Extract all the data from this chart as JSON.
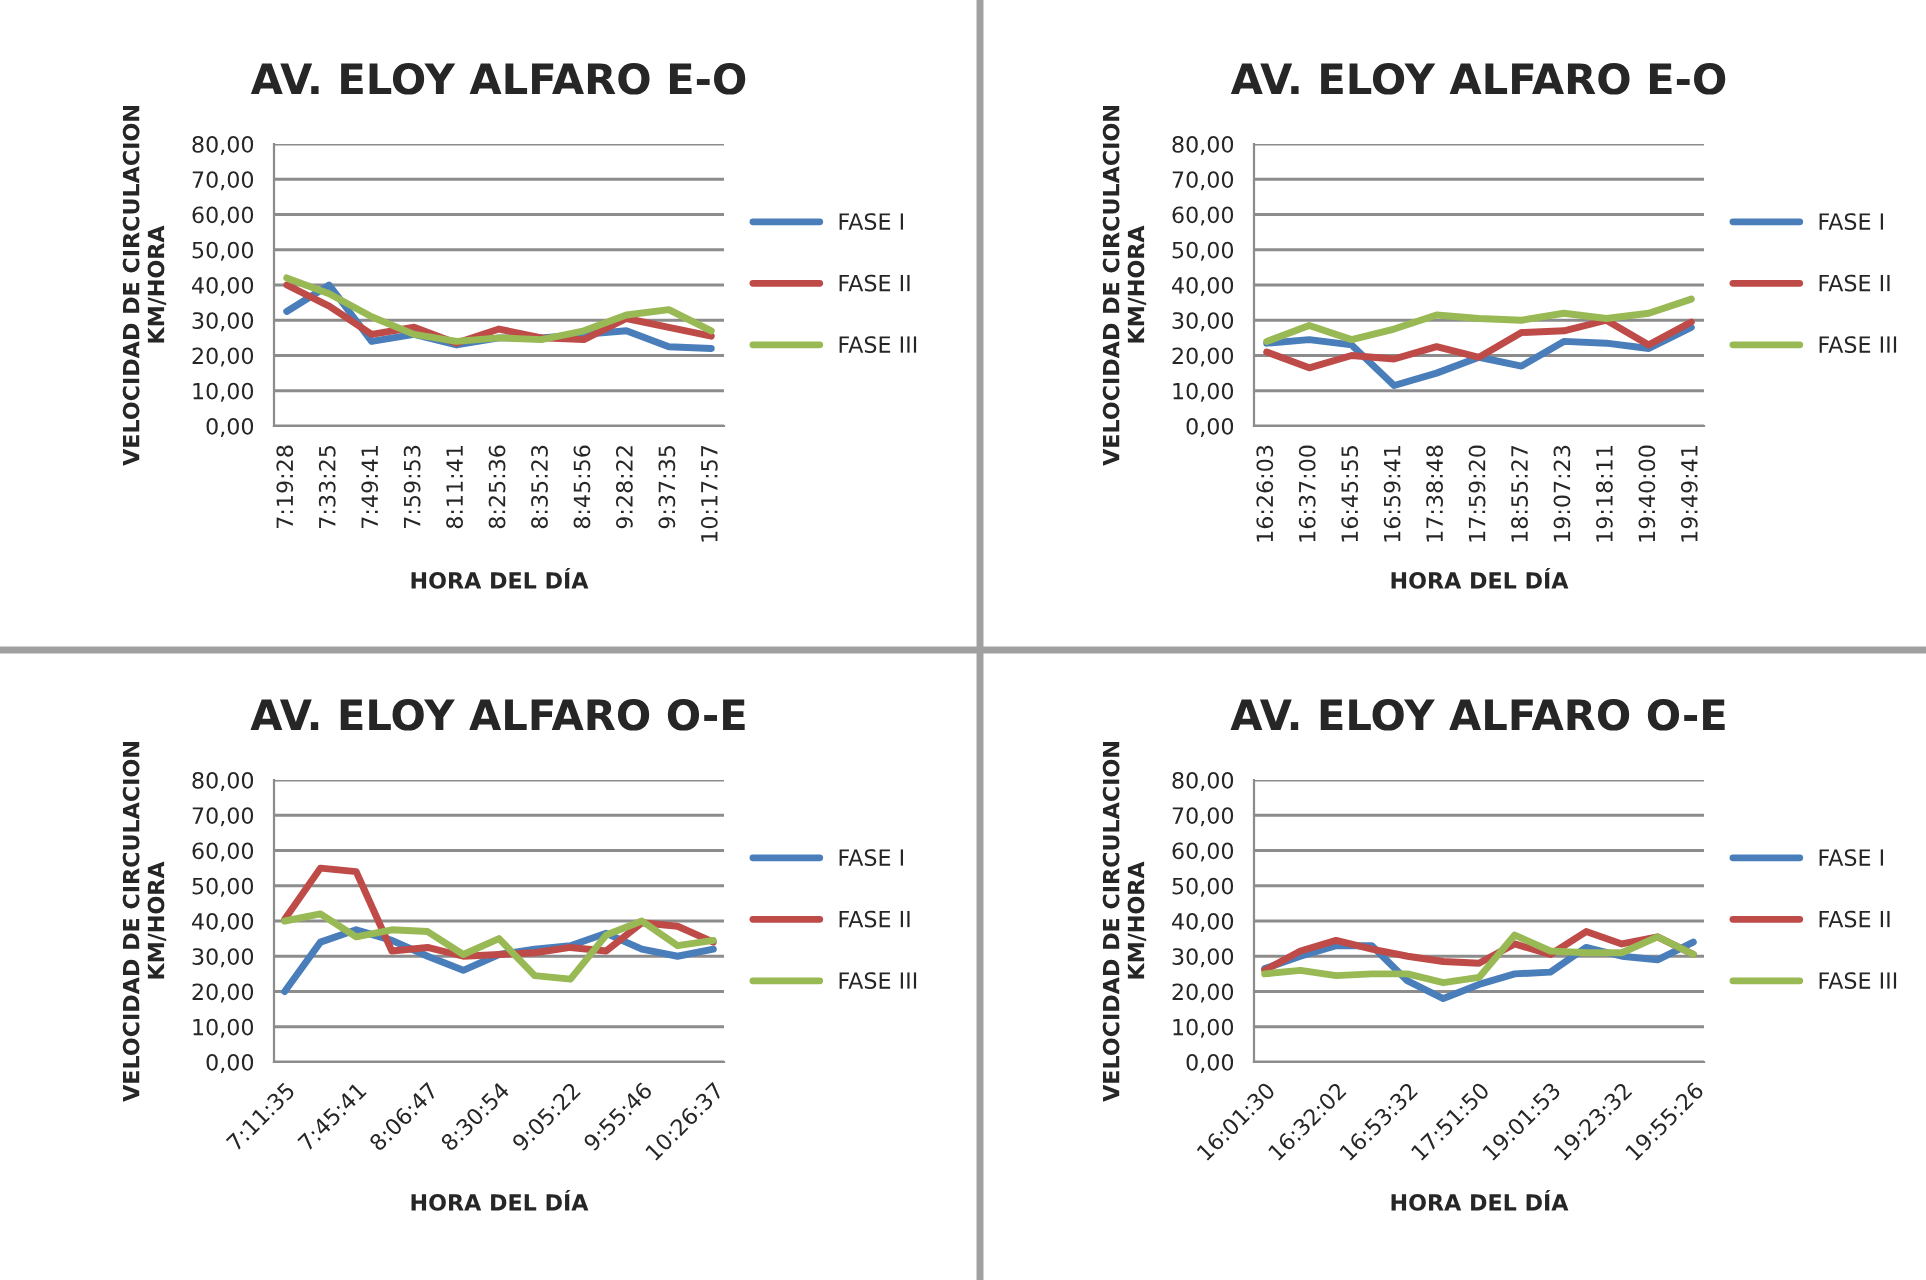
{
  "chart_data": [
    {
      "type": "line",
      "title": "AV. ELOY ALFARO E-O",
      "xlabel": "HORA DEL DÍA",
      "ylabel": "VELOCIDAD DE CIRCULACION\nKM/HORA",
      "categories": [
        "7:19:28",
        "7:33:25",
        "7:49:41",
        "7:59:53",
        "8:11:41",
        "8:25:36",
        "8:35:23",
        "8:45:56",
        "9:28:22",
        "9:37:35",
        "10:17:57"
      ],
      "series": [
        {
          "name": "FASE I",
          "color": "#4a7ebb",
          "values": [
            32.5,
            40,
            24,
            26,
            23,
            25,
            25,
            26,
            27,
            22.5,
            22
          ]
        },
        {
          "name": "FASE II",
          "color": "#be4b48",
          "values": [
            40,
            34,
            26,
            28,
            23.5,
            27.5,
            25,
            24.5,
            30.5,
            28,
            25.5
          ]
        },
        {
          "name": "FASE III",
          "color": "#98b954",
          "values": [
            42,
            37.5,
            31,
            26,
            24,
            25,
            24.5,
            27,
            31.5,
            33,
            27
          ]
        }
      ],
      "ylim": [
        0,
        80
      ],
      "yticks": [
        {
          "value": 0,
          "label": "0,00"
        },
        {
          "value": 10,
          "label": "10,00"
        },
        {
          "value": 20,
          "label": "20,00"
        },
        {
          "value": 30,
          "label": "30,00"
        },
        {
          "value": 40,
          "label": "40,00"
        },
        {
          "value": 50,
          "label": "50,00"
        },
        {
          "value": 60,
          "label": "60,00"
        },
        {
          "value": 70,
          "label": "70,00"
        },
        {
          "value": 80,
          "label": "80,00"
        }
      ],
      "grid": "y",
      "legend": "right"
    },
    {
      "type": "line",
      "title": "AV. ELOY ALFARO E-O",
      "xlabel": "HORA DEL DÍA",
      "ylabel": "VELOCIDAD DE CIRCULACION\nKM/HORA",
      "categories": [
        "16:26:03",
        "16:37:00",
        "16:45:55",
        "16:59:41",
        "17:38:48",
        "17:59:20",
        "18:55:27",
        "19:07:23",
        "19:18:11",
        "19:40:00",
        "19:49:41"
      ],
      "series": [
        {
          "name": "FASE I",
          "color": "#4a7ebb",
          "values": [
            23.5,
            24.5,
            23,
            11.5,
            15,
            19.5,
            17,
            24,
            23.5,
            22,
            28
          ]
        },
        {
          "name": "FASE II",
          "color": "#be4b48",
          "values": [
            21,
            16.5,
            20,
            19,
            22.5,
            19.5,
            26.5,
            27,
            30,
            23,
            29.5
          ]
        },
        {
          "name": "FASE III",
          "color": "#98b954",
          "values": [
            24,
            28.5,
            24.5,
            27.5,
            31.5,
            30.5,
            30,
            32,
            30.5,
            32,
            36
          ]
        }
      ],
      "ylim": [
        0,
        80
      ],
      "yticks": [
        {
          "value": 0,
          "label": "0,00"
        },
        {
          "value": 10,
          "label": "10,00"
        },
        {
          "value": 20,
          "label": "20,00"
        },
        {
          "value": 30,
          "label": "30,00"
        },
        {
          "value": 40,
          "label": "40,00"
        },
        {
          "value": 50,
          "label": "50,00"
        },
        {
          "value": 60,
          "label": "60,00"
        },
        {
          "value": 70,
          "label": "70,00"
        },
        {
          "value": 80,
          "label": "80,00"
        }
      ],
      "grid": "y",
      "legend": "right"
    },
    {
      "type": "line",
      "title": "AV. ELOY ALFARO O-E",
      "xlabel": "HORA DEL DÍA",
      "ylabel": "VELOCIDAD DE CIRCULACION\nKM/HORA",
      "categories": [
        "7:11:35",
        null,
        "7:45:41",
        null,
        "8:06:47",
        null,
        "8:30:54",
        null,
        "9:05:22",
        null,
        "9:55:46",
        null,
        "10:26:37"
      ],
      "series": [
        {
          "name": "FASE I",
          "color": "#4a7ebb",
          "values": [
            20,
            34,
            37.5,
            34.5,
            30,
            26,
            30.5,
            32,
            33,
            36.5,
            32,
            30,
            32
          ]
        },
        {
          "name": "FASE II",
          "color": "#be4b48",
          "values": [
            40.5,
            55,
            54,
            31.5,
            32.5,
            30,
            30.5,
            31,
            32.5,
            31.5,
            39.5,
            38.5,
            34
          ]
        },
        {
          "name": "FASE III",
          "color": "#98b954",
          "values": [
            40,
            42,
            35.5,
            37.5,
            37,
            30.5,
            35,
            24.5,
            23.5,
            36,
            40,
            33,
            34.5
          ]
        }
      ],
      "ylim": [
        0,
        80
      ],
      "yticks": [
        {
          "value": 0,
          "label": "0,00"
        },
        {
          "value": 10,
          "label": "10,00"
        },
        {
          "value": 20,
          "label": "20,00"
        },
        {
          "value": 30,
          "label": "30,00"
        },
        {
          "value": 40,
          "label": "40,00"
        },
        {
          "value": 50,
          "label": "50,00"
        },
        {
          "value": 60,
          "label": "60,00"
        },
        {
          "value": 70,
          "label": "70,00"
        },
        {
          "value": 80,
          "label": "80,00"
        }
      ],
      "grid": "y",
      "legend": "right"
    },
    {
      "type": "line",
      "title": "AV. ELOY ALFARO O-E",
      "xlabel": "HORA DEL DÍA",
      "ylabel": "VELOCIDAD DE CIRCULACION\nKM/HORA",
      "categories": [
        "16:01:30",
        null,
        "16:32:02",
        null,
        "16:53:32",
        null,
        "17:51:50",
        null,
        "19:01:53",
        null,
        "19:23:32",
        null,
        "19:55:26"
      ],
      "series": [
        {
          "name": "FASE I",
          "color": "#4a7ebb",
          "values": [
            26.5,
            30,
            33,
            33,
            23,
            18,
            22,
            25,
            25.5,
            32.5,
            30,
            29,
            34
          ]
        },
        {
          "name": "FASE II",
          "color": "#be4b48",
          "values": [
            26,
            31.5,
            34.5,
            32,
            30,
            28.5,
            28,
            33.5,
            30.5,
            37,
            33.5,
            35.5,
            30.5
          ]
        },
        {
          "name": "FASE III",
          "color": "#98b954",
          "values": [
            25,
            26,
            24.5,
            25,
            25,
            22.5,
            24,
            36,
            31.5,
            31,
            31,
            35.5,
            30.5
          ]
        }
      ],
      "ylim": [
        0,
        80
      ],
      "yticks": [
        {
          "value": 0,
          "label": "0,00"
        },
        {
          "value": 10,
          "label": "10,00"
        },
        {
          "value": 20,
          "label": "20,00"
        },
        {
          "value": 30,
          "label": "30,00"
        },
        {
          "value": 40,
          "label": "40,00"
        },
        {
          "value": 50,
          "label": "50,00"
        },
        {
          "value": 60,
          "label": "60,00"
        },
        {
          "value": 70,
          "label": "70,00"
        },
        {
          "value": 80,
          "label": "80,00"
        }
      ],
      "grid": "y",
      "legend": "right"
    }
  ]
}
